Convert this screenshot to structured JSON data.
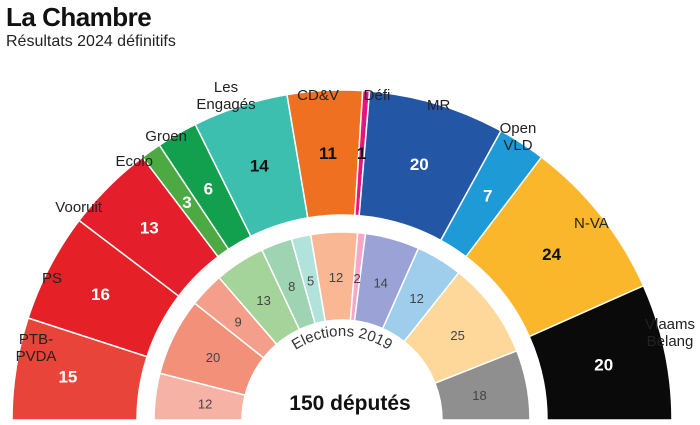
{
  "chart_data": {
    "type": "pie",
    "subtype": "parliament-half-donut",
    "title": "La Chambre",
    "subtitle": "Résultats 2024 définitifs",
    "total_label": "150 députés",
    "inner_ring_caption": "Elections 2019",
    "outer_ring": [
      {
        "party": "PTB-PVDA",
        "seats": 15,
        "color": "#e8443a",
        "text_color": "#ffffff"
      },
      {
        "party": "PS",
        "seats": 16,
        "color": "#e52026",
        "text_color": "#ffffff"
      },
      {
        "party": "Vooruit",
        "seats": 13,
        "color": "#e41f2b",
        "text_color": "#ffffff"
      },
      {
        "party": "Ecolo",
        "seats": 3,
        "color": "#4daa42",
        "text_color": "#ffffff"
      },
      {
        "party": "Groen",
        "seats": 6,
        "color": "#12a04f",
        "text_color": "#ffffff"
      },
      {
        "party": "Les Engagés",
        "seats": 14,
        "color": "#3cbfae",
        "text_color": "#111111"
      },
      {
        "party": "CD&V",
        "seats": 11,
        "color": "#f07022",
        "text_color": "#111111"
      },
      {
        "party": "Défi",
        "seats": 1,
        "color": "#e6157d",
        "text_color": "#111111"
      },
      {
        "party": "MR",
        "seats": 20,
        "color": "#2456a6",
        "text_color": "#ffffff"
      },
      {
        "party": "Open VLD",
        "seats": 7,
        "color": "#1e9ad6",
        "text_color": "#ffffff"
      },
      {
        "party": "N-VA",
        "seats": 24,
        "color": "#fbb72c",
        "text_color": "#111111"
      },
      {
        "party": "Vlaams Belang",
        "seats": 20,
        "color": "#0a0a0a",
        "text_color": "#ffffff"
      }
    ],
    "inner_ring_2019": [
      {
        "party": "PTB-PVDA",
        "seats": 12,
        "color": "#f6b2a4"
      },
      {
        "party": "PS",
        "seats": 20,
        "color": "#f29079"
      },
      {
        "party": "Vooruit",
        "seats": 9,
        "color": "#f39f8b"
      },
      {
        "party": "Ecolo",
        "seats": 13,
        "color": "#a5d49a"
      },
      {
        "party": "Groen",
        "seats": 8,
        "color": "#9fd4b2"
      },
      {
        "party": "Les Engagés",
        "seats": 5,
        "color": "#b2e2dc"
      },
      {
        "party": "CD&V",
        "seats": 12,
        "color": "#f9b793"
      },
      {
        "party": "Défi",
        "seats": 2,
        "color": "#f3a8c9"
      },
      {
        "party": "MR",
        "seats": 14,
        "color": "#9aa2d6"
      },
      {
        "party": "Open VLD",
        "seats": 12,
        "color": "#9fcdec"
      },
      {
        "party": "N-VA",
        "seats": 25,
        "color": "#fdd89a"
      },
      {
        "party": "Vlaams Belang",
        "seats": 18,
        "color": "#8f8f8f"
      }
    ]
  }
}
